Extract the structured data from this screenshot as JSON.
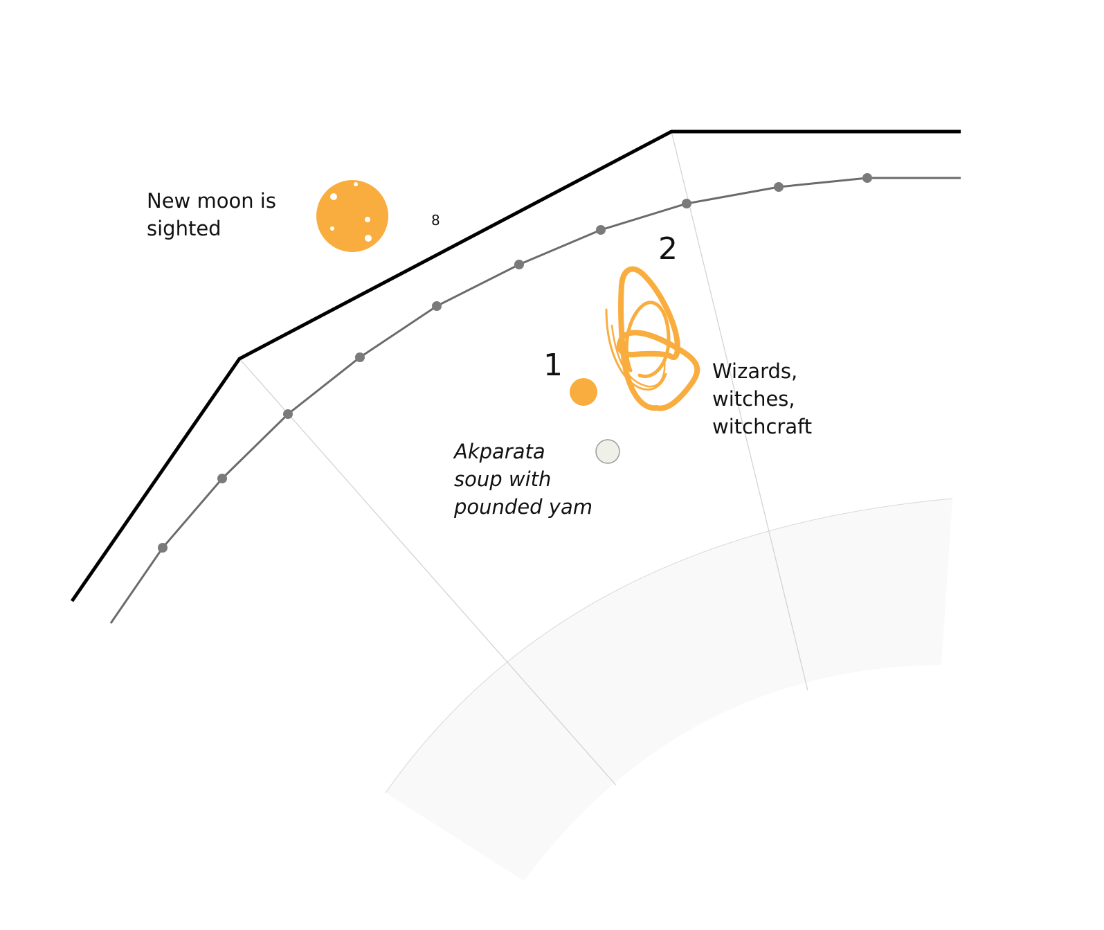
{
  "labels": {
    "new_moon": "New moon is\nsighted",
    "small_number": "8",
    "number_two": "2",
    "number_one": "1",
    "wizards": "Wizards,\nwitches,\nwitchcraft",
    "akparata": "Akparata\nsoup with\npounded yam"
  },
  "colors": {
    "accent": "#F9AD3E",
    "outer_line": "#000000",
    "inner_line": "#6B6B6B",
    "marker": "#7A7A7A",
    "guide_line": "#D3D3D3",
    "band_fill": "#FAF9FA",
    "soup_fill": "#EFF0E8",
    "soup_stroke": "#9A9A9A"
  },
  "icons": {
    "moon": "full-moon-dotted-icon",
    "scribble": "witchcraft-scribble-icon",
    "event_dot": "event-dot-icon",
    "soup_dot": "soup-dot-icon"
  }
}
